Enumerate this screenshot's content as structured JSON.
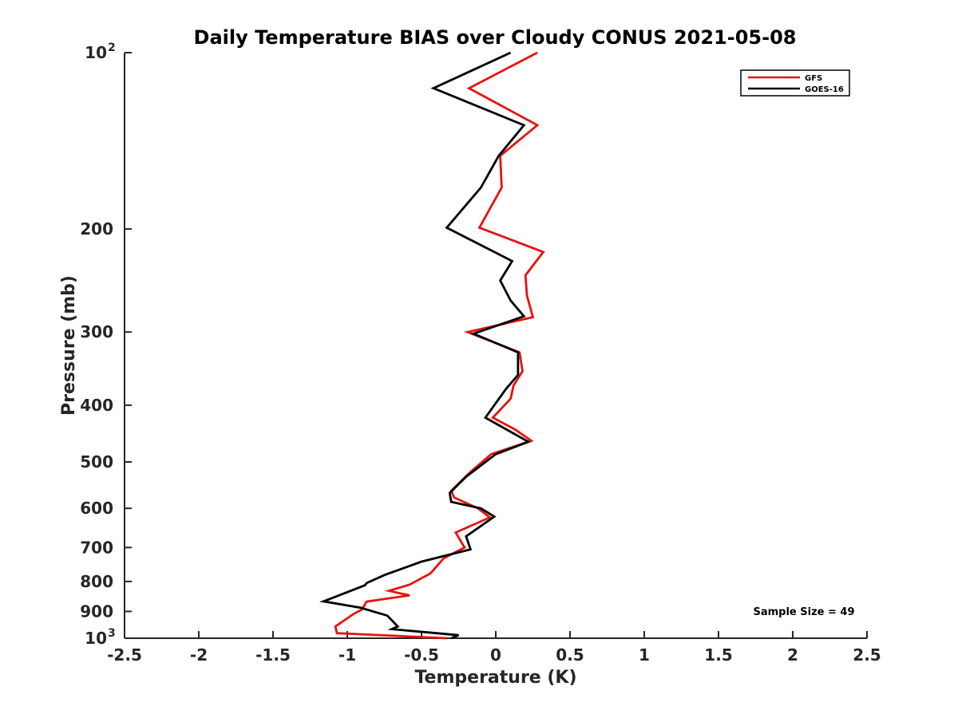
{
  "chart_data": {
    "type": "line",
    "title": "Daily Temperature BIAS over Cloudy CONUS 2021-05-08",
    "xlabel": "Temperature (K)",
    "ylabel": "Pressure (mb)",
    "xlim": [
      -2.5,
      2.5
    ],
    "ylim": [
      100,
      1000
    ],
    "yscale": "log",
    "y_reversed": true,
    "x_ticks": [
      "-2.5",
      "-2",
      "-1.5",
      "-1",
      "-0.5",
      "0",
      "0.5",
      "1",
      "1.5",
      "2",
      "2.5"
    ],
    "y_ticks": [
      {
        "value": 100,
        "base": "10",
        "exp": "2"
      },
      {
        "value": 200,
        "label": "200"
      },
      {
        "value": 300,
        "label": "300"
      },
      {
        "value": 400,
        "label": "400"
      },
      {
        "value": 500,
        "label": "500"
      },
      {
        "value": 600,
        "label": "600"
      },
      {
        "value": 700,
        "label": "700"
      },
      {
        "value": 800,
        "label": "800"
      },
      {
        "value": 900,
        "label": "900"
      },
      {
        "value": 1000,
        "base": "10",
        "exp": "3"
      }
    ],
    "grid": false,
    "legend_position": "top-right",
    "annotation": "Sample Size = 49",
    "series": [
      {
        "name": "GFS",
        "color": "#e8120c",
        "points": [
          {
            "x": 0.28,
            "p": 100
          },
          {
            "x": -0.18,
            "p": 115
          },
          {
            "x": 0.28,
            "p": 133
          },
          {
            "x": 0.03,
            "p": 150
          },
          {
            "x": 0.04,
            "p": 170
          },
          {
            "x": -0.11,
            "p": 199
          },
          {
            "x": 0.32,
            "p": 219
          },
          {
            "x": 0.2,
            "p": 240
          },
          {
            "x": 0.21,
            "p": 260
          },
          {
            "x": 0.25,
            "p": 283
          },
          {
            "x": -0.19,
            "p": 300
          },
          {
            "x": 0.16,
            "p": 325
          },
          {
            "x": 0.18,
            "p": 350
          },
          {
            "x": 0.12,
            "p": 370
          },
          {
            "x": 0.1,
            "p": 390
          },
          {
            "x": -0.02,
            "p": 420
          },
          {
            "x": 0.13,
            "p": 440
          },
          {
            "x": 0.24,
            "p": 460
          },
          {
            "x": -0.03,
            "p": 485
          },
          {
            "x": -0.17,
            "p": 520
          },
          {
            "x": -0.3,
            "p": 560
          },
          {
            "x": -0.28,
            "p": 575
          },
          {
            "x": -0.12,
            "p": 600
          },
          {
            "x": -0.04,
            "p": 622
          },
          {
            "x": -0.27,
            "p": 660
          },
          {
            "x": -0.21,
            "p": 700
          },
          {
            "x": -0.35,
            "p": 730
          },
          {
            "x": -0.44,
            "p": 775
          },
          {
            "x": -0.58,
            "p": 810
          },
          {
            "x": -0.72,
            "p": 830
          },
          {
            "x": -0.58,
            "p": 845
          },
          {
            "x": -0.87,
            "p": 866
          },
          {
            "x": -0.9,
            "p": 893
          },
          {
            "x": -0.96,
            "p": 910
          },
          {
            "x": -1.08,
            "p": 955
          },
          {
            "x": -1.07,
            "p": 980
          },
          {
            "x": -0.33,
            "p": 1000
          }
        ]
      },
      {
        "name": "GOES-16",
        "color": "#000000",
        "points": [
          {
            "x": 0.1,
            "p": 100
          },
          {
            "x": -0.42,
            "p": 115
          },
          {
            "x": 0.19,
            "p": 133
          },
          {
            "x": 0.02,
            "p": 150
          },
          {
            "x": -0.1,
            "p": 170
          },
          {
            "x": -0.33,
            "p": 199
          },
          {
            "x": 0.11,
            "p": 227
          },
          {
            "x": 0.03,
            "p": 245
          },
          {
            "x": 0.1,
            "p": 265
          },
          {
            "x": 0.19,
            "p": 282
          },
          {
            "x": -0.15,
            "p": 302
          },
          {
            "x": 0.15,
            "p": 325
          },
          {
            "x": 0.15,
            "p": 355
          },
          {
            "x": 0.07,
            "p": 375
          },
          {
            "x": -0.07,
            "p": 420
          },
          {
            "x": 0.22,
            "p": 462
          },
          {
            "x": 0,
            "p": 485
          },
          {
            "x": -0.2,
            "p": 530
          },
          {
            "x": -0.31,
            "p": 565
          },
          {
            "x": -0.3,
            "p": 585
          },
          {
            "x": -0.1,
            "p": 600
          },
          {
            "x": -0.01,
            "p": 620
          },
          {
            "x": -0.2,
            "p": 670
          },
          {
            "x": -0.17,
            "p": 705
          },
          {
            "x": -0.5,
            "p": 740
          },
          {
            "x": -0.75,
            "p": 780
          },
          {
            "x": -0.87,
            "p": 805
          },
          {
            "x": -0.88,
            "p": 812
          },
          {
            "x": -1.16,
            "p": 865
          },
          {
            "x": -0.91,
            "p": 887
          },
          {
            "x": -0.73,
            "p": 915
          },
          {
            "x": -0.66,
            "p": 955
          },
          {
            "x": -0.7,
            "p": 965
          },
          {
            "x": -0.25,
            "p": 988
          },
          {
            "x": -0.3,
            "p": 1000
          }
        ]
      }
    ]
  }
}
